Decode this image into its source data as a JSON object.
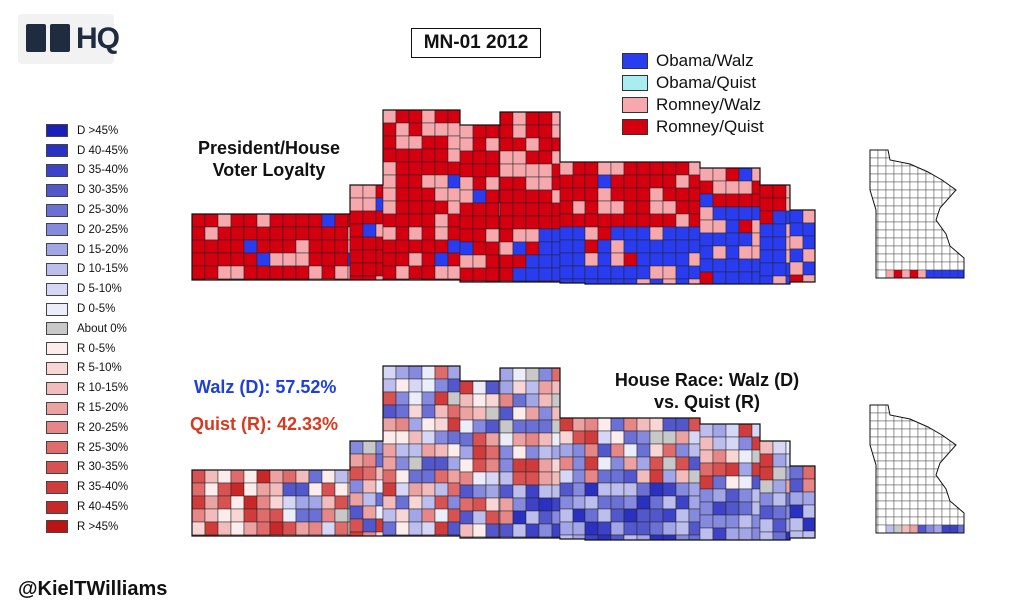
{
  "logo": {
    "text": "HQ"
  },
  "title": "MN-01 2012",
  "top_map": {
    "heading_line1": "President/House",
    "heading_line2": "Voter Loyalty"
  },
  "bottom_map": {
    "heading_line1": "House Race: Walz (D)",
    "heading_line2": "vs. Quist (R)"
  },
  "results": {
    "walz": "Walz (D): 57.52%",
    "quist": "Quist (R): 42.33%",
    "walz_color": "#1f3fd6",
    "quist_color": "#d63a1f"
  },
  "loyalty_legend": [
    {
      "label": "Obama/Walz",
      "color": "#2a3cf0"
    },
    {
      "label": "Obama/Quist",
      "color": "#a8eef0"
    },
    {
      "label": "Romney/Walz",
      "color": "#f5a9ad"
    },
    {
      "label": "Romney/Quist",
      "color": "#d4000f"
    }
  ],
  "margin_legend": [
    {
      "label": "D >45%",
      "color": "#1a1fb8"
    },
    {
      "label": "D 40-45%",
      "color": "#2a30c0"
    },
    {
      "label": "D 35-40%",
      "color": "#3d42c6"
    },
    {
      "label": "D 30-35%",
      "color": "#5258cc"
    },
    {
      "label": "D 25-30%",
      "color": "#6b70d4"
    },
    {
      "label": "D 20-25%",
      "color": "#868ade"
    },
    {
      "label": "D 15-20%",
      "color": "#a2a5e6"
    },
    {
      "label": "D 10-15%",
      "color": "#bcbeee"
    },
    {
      "label": "D 5-10%",
      "color": "#d6d7f6"
    },
    {
      "label": "D 0-5%",
      "color": "#ecedfb"
    },
    {
      "label": "About 0%",
      "color": "#c8c8c8"
    },
    {
      "label": "R 0-5%",
      "color": "#fdecec"
    },
    {
      "label": "R 5-10%",
      "color": "#f9d6d6"
    },
    {
      "label": "R 10-15%",
      "color": "#f3bcbc"
    },
    {
      "label": "R 15-20%",
      "color": "#eda2a2"
    },
    {
      "label": "R 20-25%",
      "color": "#e68686"
    },
    {
      "label": "R 25-30%",
      "color": "#df6b6b"
    },
    {
      "label": "R 30-35%",
      "color": "#d85252"
    },
    {
      "label": "R 35-40%",
      "color": "#d03c3c"
    },
    {
      "label": "R 40-45%",
      "color": "#c82828"
    },
    {
      "label": "R >45%",
      "color": "#bc1414"
    }
  ],
  "handle": "@KielTWilliams"
}
